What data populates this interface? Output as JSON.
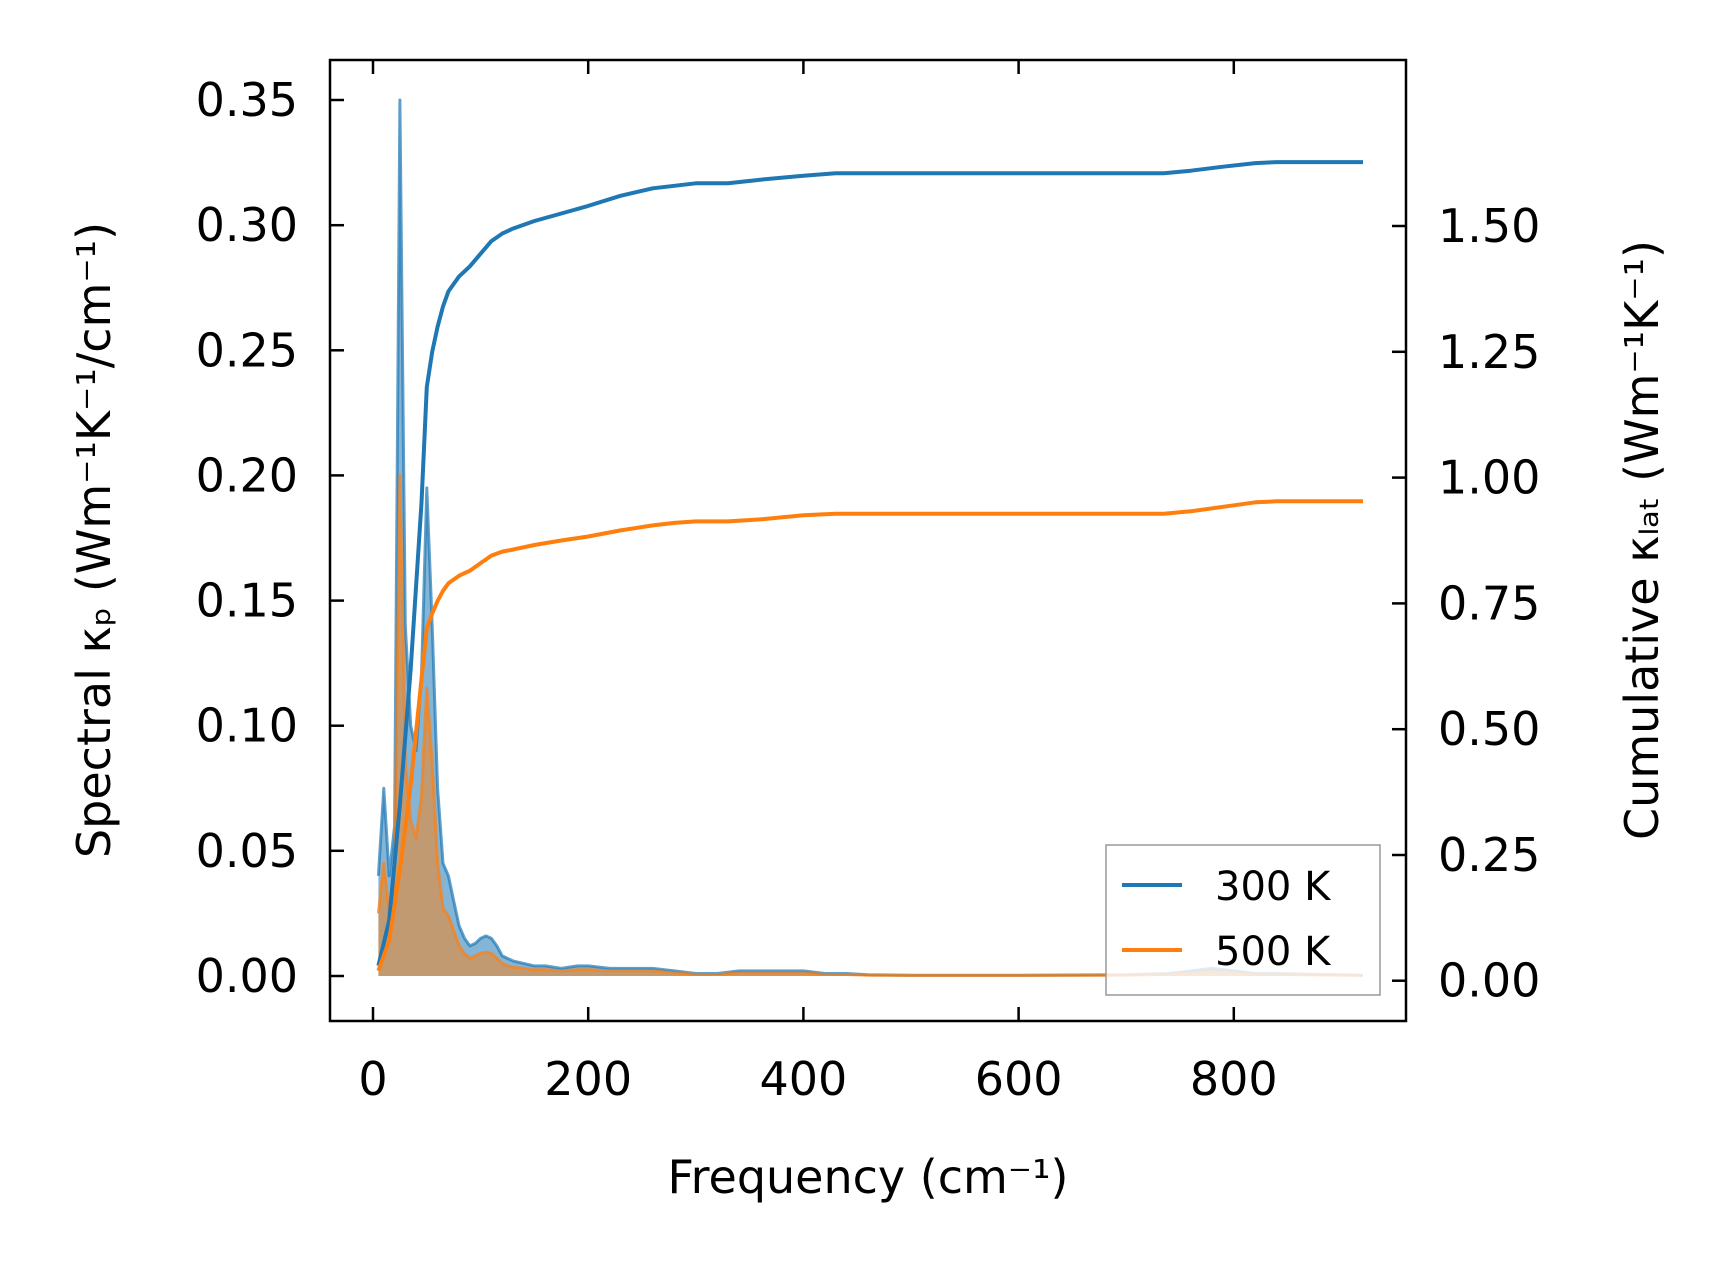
{
  "chart_data": {
    "type": "line",
    "xlabel": "Frequency (cm⁻¹)",
    "ylabel_left": "Spectral κₚ (Wm⁻¹K⁻¹/cm⁻¹)",
    "ylabel_right": "Cumulative κₗₐₜ (Wm⁻¹K⁻¹)",
    "xlim": [
      -40,
      960
    ],
    "ylim_left": [
      -0.018,
      0.366
    ],
    "ylim_right": [
      -0.08,
      1.83
    ],
    "x_ticks": [
      0,
      200,
      400,
      600,
      800
    ],
    "x_tick_labels": [
      "0",
      "200",
      "400",
      "600",
      "800"
    ],
    "y_left_ticks": [
      0.0,
      0.05,
      0.1,
      0.15,
      0.2,
      0.25,
      0.3,
      0.35
    ],
    "y_left_tick_labels": [
      "0.00",
      "0.05",
      "0.10",
      "0.15",
      "0.20",
      "0.25",
      "0.30",
      "0.35"
    ],
    "y_right_ticks": [
      0.0,
      0.25,
      0.5,
      0.75,
      1.0,
      1.25,
      1.5
    ],
    "y_right_tick_labels": [
      "0.00",
      "0.25",
      "0.50",
      "0.75",
      "1.00",
      "1.25",
      "1.50"
    ],
    "legend": {
      "placement": "lower right"
    },
    "series": [
      {
        "name": "300 K",
        "color": "#1f77b4",
        "spectral": {
          "x": [
            5,
            10,
            15,
            20,
            25,
            30,
            35,
            40,
            45,
            50,
            55,
            60,
            65,
            70,
            75,
            80,
            85,
            90,
            95,
            100,
            105,
            110,
            115,
            120,
            125,
            130,
            140,
            150,
            160,
            175,
            190,
            200,
            220,
            240,
            260,
            280,
            300,
            320,
            340,
            360,
            380,
            400,
            420,
            440,
            460,
            500,
            600,
            700,
            740,
            760,
            780,
            800,
            820,
            840,
            860,
            880,
            900,
            920
          ],
          "y": [
            0.04,
            0.075,
            0.04,
            0.06,
            0.35,
            0.14,
            0.1,
            0.09,
            0.12,
            0.195,
            0.14,
            0.075,
            0.045,
            0.04,
            0.03,
            0.02,
            0.015,
            0.012,
            0.013,
            0.015,
            0.016,
            0.015,
            0.012,
            0.008,
            0.007,
            0.006,
            0.005,
            0.004,
            0.004,
            0.003,
            0.004,
            0.004,
            0.003,
            0.003,
            0.003,
            0.002,
            0.001,
            0.001,
            0.002,
            0.002,
            0.002,
            0.002,
            0.001,
            0.001,
            0.0005,
            0.0003,
            0.0003,
            0.0005,
            0.001,
            0.002,
            0.003,
            0.002,
            0.001,
            0.001,
            0.0008,
            0.0006,
            0.0005,
            0.0003
          ]
        },
        "cumulative": {
          "x": [
            5,
            15,
            25,
            35,
            45,
            50,
            55,
            60,
            65,
            70,
            80,
            90,
            100,
            110,
            120,
            130,
            150,
            175,
            200,
            230,
            260,
            280,
            300,
            330,
            360,
            400,
            430,
            600,
            735,
            760,
            790,
            820,
            840,
            920
          ],
          "y": [
            0.03,
            0.12,
            0.35,
            0.62,
            0.95,
            1.18,
            1.25,
            1.3,
            1.34,
            1.37,
            1.4,
            1.42,
            1.445,
            1.47,
            1.485,
            1.495,
            1.51,
            1.525,
            1.54,
            1.56,
            1.575,
            1.58,
            1.585,
            1.585,
            1.592,
            1.6,
            1.605,
            1.605,
            1.605,
            1.61,
            1.618,
            1.625,
            1.627,
            1.627
          ]
        }
      },
      {
        "name": "500 K",
        "color": "#ff7f0e",
        "spectral": {
          "x": [
            5,
            10,
            15,
            20,
            25,
            30,
            35,
            40,
            45,
            50,
            55,
            60,
            65,
            70,
            75,
            80,
            85,
            90,
            95,
            100,
            105,
            110,
            115,
            120,
            125,
            130,
            140,
            150,
            160,
            175,
            190,
            200,
            220,
            240,
            260,
            280,
            300,
            320,
            340,
            360,
            380,
            400,
            420,
            440,
            460,
            500,
            600,
            700,
            740,
            760,
            780,
            800,
            820,
            840,
            860,
            880,
            900,
            920
          ],
          "y": [
            0.025,
            0.045,
            0.025,
            0.037,
            0.2,
            0.085,
            0.062,
            0.055,
            0.072,
            0.115,
            0.085,
            0.045,
            0.027,
            0.024,
            0.018,
            0.012,
            0.009,
            0.007,
            0.008,
            0.009,
            0.0095,
            0.009,
            0.007,
            0.005,
            0.004,
            0.0035,
            0.003,
            0.0025,
            0.0025,
            0.002,
            0.0025,
            0.0025,
            0.002,
            0.002,
            0.002,
            0.0012,
            0.0006,
            0.0006,
            0.0012,
            0.0012,
            0.0012,
            0.0012,
            0.0006,
            0.0006,
            0.0003,
            0.0002,
            0.0002,
            0.0003,
            0.0006,
            0.0012,
            0.0018,
            0.0012,
            0.0006,
            0.0006,
            0.0005,
            0.0004,
            0.0003,
            0.0002
          ]
        },
        "cumulative": {
          "x": [
            5,
            15,
            25,
            35,
            45,
            50,
            55,
            60,
            65,
            70,
            80,
            90,
            100,
            110,
            120,
            130,
            150,
            175,
            200,
            230,
            260,
            280,
            300,
            330,
            360,
            400,
            430,
            600,
            735,
            760,
            790,
            820,
            840,
            920
          ],
          "y": [
            0.02,
            0.08,
            0.22,
            0.39,
            0.6,
            0.7,
            0.73,
            0.755,
            0.775,
            0.79,
            0.805,
            0.815,
            0.83,
            0.845,
            0.853,
            0.857,
            0.866,
            0.875,
            0.883,
            0.895,
            0.905,
            0.91,
            0.913,
            0.913,
            0.917,
            0.925,
            0.928,
            0.928,
            0.928,
            0.933,
            0.942,
            0.951,
            0.953,
            0.953
          ]
        }
      }
    ]
  }
}
